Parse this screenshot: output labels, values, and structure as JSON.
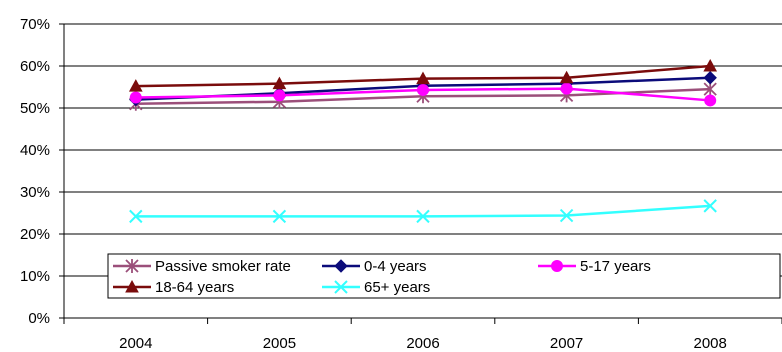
{
  "chart_data": {
    "type": "line",
    "title": "",
    "xlabel": "",
    "ylabel": "",
    "x": [
      "2004",
      "2005",
      "2006",
      "2007",
      "2008"
    ],
    "ylim": [
      0,
      70
    ],
    "yticks": [
      0,
      10,
      20,
      30,
      40,
      50,
      60,
      70
    ],
    "ytick_labels": [
      "0%",
      "10%",
      "20%",
      "30%",
      "40%",
      "50%",
      "60%",
      "70%"
    ],
    "grid": "horizontal",
    "legend": {
      "position": "bottom-inside",
      "columns": 3
    },
    "series": [
      {
        "name": "Passive smoker rate",
        "color": "#9B4F7A",
        "marker": "star",
        "values": [
          51,
          51.5,
          52.8,
          53,
          54.5
        ]
      },
      {
        "name": "0-4 years",
        "color": "#0B0B7A",
        "marker": "diamond",
        "values": [
          52,
          53.5,
          55.3,
          55.8,
          57.2
        ]
      },
      {
        "name": "5-17 years",
        "color": "#FF00FF",
        "marker": "circle",
        "values": [
          52.5,
          53,
          54.3,
          54.6,
          51.8
        ]
      },
      {
        "name": "18-64 years",
        "color": "#7A0C0C",
        "marker": "triangle",
        "values": [
          55.2,
          55.8,
          57,
          57.2,
          60
        ]
      },
      {
        "name": "65+ years",
        "color": "#33FFFF",
        "marker": "x",
        "values": [
          24.2,
          24.2,
          24.2,
          24.4,
          26.7
        ]
      }
    ]
  }
}
